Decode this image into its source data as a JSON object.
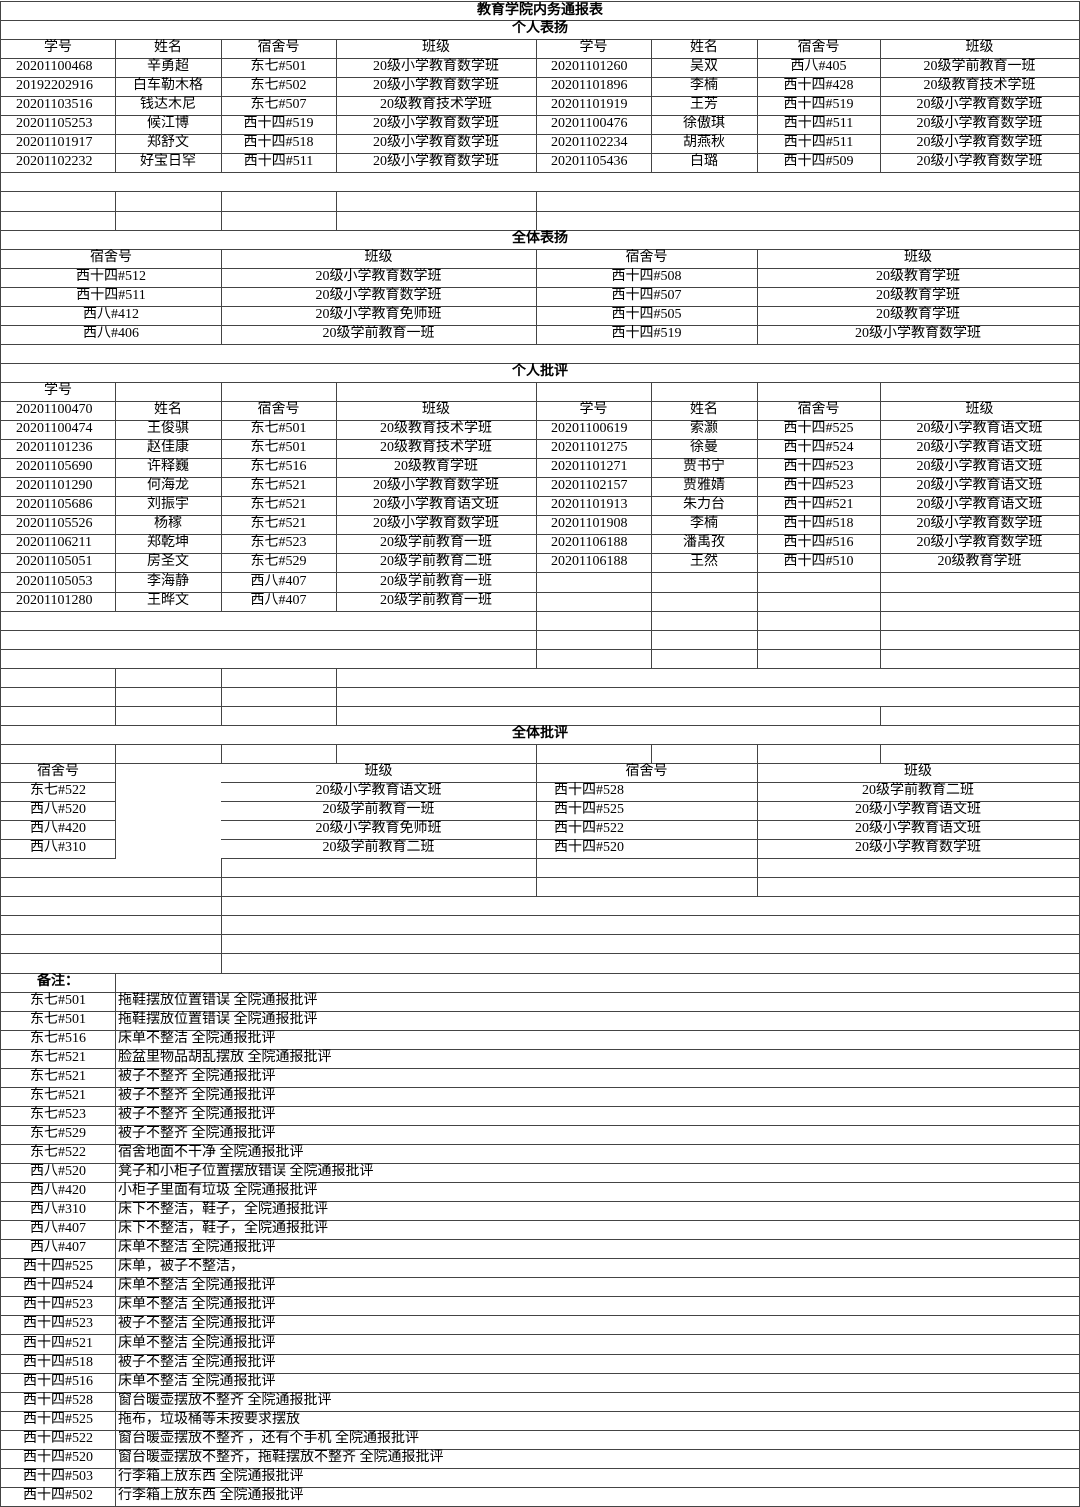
{
  "title": "教育学院内务通报表",
  "individual_praise": {
    "heading": "个人表扬",
    "columns": [
      "学号",
      "姓名",
      "宿舍号",
      "班级"
    ],
    "left": [
      [
        "20201100468",
        "辛勇超",
        "东七#501",
        "20级小学教育数学班"
      ],
      [
        "20192202916",
        "白车勒木格",
        "东七#502",
        "20级小学教育数学班"
      ],
      [
        "20201103516",
        "钱达木尼",
        "东七#507",
        "20级教育技术学班"
      ],
      [
        "20201105253",
        "候江博",
        "西十四#519",
        "20级小学教育数学班"
      ],
      [
        "20201101917",
        "郑舒文",
        "西十四#518",
        "20级小学教育数学班"
      ],
      [
        "20201102232",
        "好宝日罕",
        "西十四#511",
        "20级小学教育数学班"
      ]
    ],
    "right": [
      [
        "20201101260",
        "吴双",
        "西八#405",
        "20级学前教育一班"
      ],
      [
        "20201101896",
        "李楠",
        "西十四#428",
        "20级教育技术学班"
      ],
      [
        "20201101919",
        "王芳",
        "西十四#519",
        "20级小学教育数学班"
      ],
      [
        "20201100476",
        "徐傲琪",
        "西十四#511",
        "20级小学教育数学班"
      ],
      [
        "20201102234",
        "胡燕秋",
        "西十四#511",
        "20级小学教育数学班"
      ],
      [
        "20201105436",
        "白璐",
        "西十四#509",
        "20级小学教育数学班"
      ]
    ]
  },
  "group_praise": {
    "heading": "全体表扬",
    "columns": [
      "宿舍号",
      "班级"
    ],
    "left": [
      [
        "西十四#512",
        "20级小学教育数学班"
      ],
      [
        "西十四#511",
        "20级小学教育数学班"
      ],
      [
        "西八#412",
        "20级小学教育免师班"
      ],
      [
        "西八#406",
        "20级学前教育一班"
      ]
    ],
    "right": [
      [
        "西十四#508",
        "20级教育学班"
      ],
      [
        "西十四#507",
        "20级教育学班"
      ],
      [
        "西十四#505",
        "20级教育学班"
      ],
      [
        "西十四#519",
        "20级小学教育数学班"
      ]
    ]
  },
  "individual_criticism": {
    "heading": "个人批评",
    "columns": [
      "学号",
      "姓名",
      "宿舍号",
      "班级"
    ],
    "stray_id": "20201100470",
    "left": [
      [
        "20201100474",
        "王俊骐",
        "东七#501",
        "20级教育技术学班"
      ],
      [
        "20201101236",
        "赵佳康",
        "东七#501",
        "20级教育技术学班"
      ],
      [
        "20201105690",
        "许释巍",
        "东七#516",
        "20级教育学班"
      ],
      [
        "20201101290",
        "何海龙",
        "东七#521",
        "20级小学教育数学班"
      ],
      [
        "20201105686",
        "刘振宇",
        "东七#521",
        "20级小学教育语文班"
      ],
      [
        "20201105526",
        "杨稼",
        "东七#521",
        "20级小学教育数学班"
      ],
      [
        "20201106211",
        "郑乾坤",
        "东七#523",
        "20级学前教育一班"
      ],
      [
        "20201105051",
        "房圣文",
        "东七#529",
        "20级学前教育二班"
      ],
      [
        "20201105053",
        "李海静",
        "西八#407",
        "20级学前教育一班"
      ],
      [
        "20201101280",
        "王晔文",
        "西八#407",
        "20级学前教育一班"
      ]
    ],
    "right": [
      [
        "20201100619",
        "索灏",
        "西十四#525",
        "20级小学教育语文班"
      ],
      [
        "20201101275",
        "徐曼",
        "西十四#524",
        "20级小学教育语文班"
      ],
      [
        "20201101271",
        "贾书宁",
        "西十四#523",
        "20级小学教育语文班"
      ],
      [
        "20201102157",
        "贾雅婧",
        "西十四#523",
        "20级小学教育语文班"
      ],
      [
        "20201101913",
        "朱力台",
        "西十四#521",
        "20级小学教育语文班"
      ],
      [
        "20201101908",
        "李楠",
        "西十四#518",
        "20级小学教育数学班"
      ],
      [
        "20201106188",
        "潘禹孜",
        "西十四#516",
        "20级小学教育数学班"
      ],
      [
        "20201106188",
        "王然",
        "西十四#510",
        "20级教育学班"
      ]
    ]
  },
  "group_criticism": {
    "heading": "全体批评",
    "columns": [
      "宿舍号",
      "班级"
    ],
    "left": [
      [
        "东七#522",
        "20级小学教育语文班"
      ],
      [
        "西八#520",
        "20级学前教育一班"
      ],
      [
        "西八#420",
        "20级小学教育免师班"
      ],
      [
        "西八#310",
        "20级学前教育二班"
      ]
    ],
    "right": [
      [
        "西十四#528",
        "20级学前教育二班"
      ],
      [
        "西十四#525",
        "20级小学教育语文班"
      ],
      [
        "西十四#522",
        "20级小学教育语文班"
      ],
      [
        "西十四#520",
        "20级小学教育数学班"
      ]
    ]
  },
  "notes": {
    "heading": "备注：",
    "items": [
      [
        "东七#501",
        "拖鞋摆放位置错误 全院通报批评"
      ],
      [
        "东七#501",
        "拖鞋摆放位置错误 全院通报批评"
      ],
      [
        "东七#516",
        "床单不整洁 全院通报批评"
      ],
      [
        "东七#521",
        "脸盆里物品胡乱摆放 全院通报批评"
      ],
      [
        "东七#521",
        "被子不整齐 全院通报批评"
      ],
      [
        "东七#521",
        "被子不整齐 全院通报批评"
      ],
      [
        "东七#523",
        "被子不整齐 全院通报批评"
      ],
      [
        "东七#529",
        "被子不整齐 全院通报批评"
      ],
      [
        "东七#522",
        "宿舍地面不干净 全院通报批评"
      ],
      [
        "西八#520",
        "凳子和小柜子位置摆放错误 全院通报批评"
      ],
      [
        "西八#420",
        "小柜子里面有垃圾 全院通报批评"
      ],
      [
        "西八#310",
        "床下不整洁，鞋子，全院通报批评"
      ],
      [
        "西八#407",
        "床下不整洁，鞋子，全院通报批评"
      ],
      [
        "西八#407",
        "床单不整洁 全院通报批评"
      ],
      [
        "西十四#525",
        "床单，被子不整洁，"
      ],
      [
        "西十四#524",
        "床单不整洁 全院通报批评"
      ],
      [
        "西十四#523",
        "床单不整洁 全院通报批评"
      ],
      [
        "西十四#523",
        "被子不整洁 全院通报批评"
      ],
      [
        "西十四#521",
        "床单不整洁 全院通报批评"
      ],
      [
        "西十四#518",
        "被子不整洁 全院通报批评"
      ],
      [
        "西十四#516",
        "床单不整洁 全院通报批评"
      ],
      [
        "西十四#528",
        "窗台暖壶摆放不整齐 全院通报批评"
      ],
      [
        "西十四#525",
        "拖布，垃圾桶等未按要求摆放"
      ],
      [
        "西十四#522",
        "窗台暖壶摆放不整齐 ，还有个手机 全院通报批评"
      ],
      [
        "西十四#520",
        "窗台暖壶摆放不整齐，拖鞋摆放不整齐 全院通报批评"
      ],
      [
        "西十四#503",
        "行李箱上放东西 全院通报批评"
      ],
      [
        "西十四#502",
        "行李箱上放东西 全院通报批评"
      ]
    ]
  }
}
